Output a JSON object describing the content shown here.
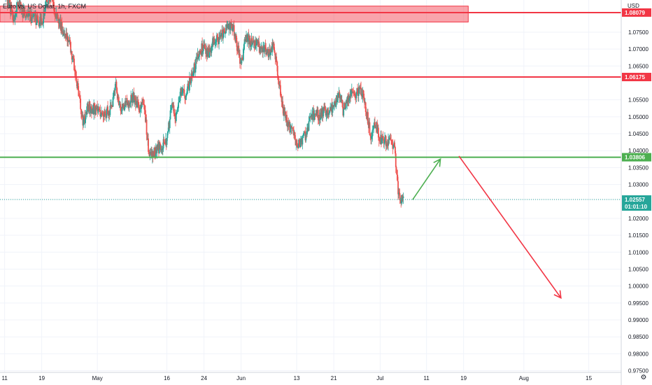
{
  "symbol_title": "Euro vs. US Dollar, 1h, FXCM",
  "currency": "USD",
  "axis_settings_icon": "gear-icon",
  "colors": {
    "up": "#26a69a",
    "down": "#ef5350",
    "resistance": "#f23645",
    "support": "#4caf50",
    "grid": "#f0f3fa",
    "last_price": "#26a69a"
  },
  "chart_data": {
    "type": "candlestick",
    "title": "Euro vs. US Dollar, 1h, FXCM",
    "ylabel": "USD",
    "ylim": [
      0.9745,
      1.0845
    ],
    "xlim": [
      "2022-04-10",
      "2022-08-22"
    ],
    "y_ticks": [
      "1.08079",
      "1.07500",
      "1.07000",
      "1.06500",
      "1.06175",
      "1.05500",
      "1.05000",
      "1.04500",
      "1.04000",
      "1.03806",
      "1.03500",
      "1.03000",
      "1.02557",
      "1.02000",
      "1.01500",
      "1.01000",
      "1.00500",
      "1.00000",
      "0.99500",
      "0.99000",
      "0.98500",
      "0.98000",
      "0.97500"
    ],
    "x_ticks": [
      {
        "label": "11",
        "date": "2022-04-11"
      },
      {
        "label": "19",
        "date": "2022-04-19"
      },
      {
        "label": "May",
        "date": "2022-05-01"
      },
      {
        "label": "16",
        "date": "2022-05-16"
      },
      {
        "label": "24",
        "date": "2022-05-24"
      },
      {
        "label": "Jun",
        "date": "2022-06-01"
      },
      {
        "label": "13",
        "date": "2022-06-13"
      },
      {
        "label": "21",
        "date": "2022-06-21"
      },
      {
        "label": "Jul",
        "date": "2022-07-01"
      },
      {
        "label": "11",
        "date": "2022-07-11"
      },
      {
        "label": "19",
        "date": "2022-07-19"
      },
      {
        "label": "Aug",
        "date": "2022-08-01"
      },
      {
        "label": "15",
        "date": "2022-08-15"
      }
    ],
    "grid": true,
    "price_path": [
      [
        "2022-04-11",
        1.087
      ],
      [
        "2022-04-13",
        1.079
      ],
      [
        "2022-04-14",
        1.084
      ],
      [
        "2022-04-15",
        1.0805
      ],
      [
        "2022-04-18",
        1.0785
      ],
      [
        "2022-04-19",
        1.0775
      ],
      [
        "2022-04-20",
        1.0835
      ],
      [
        "2022-04-21",
        1.086
      ],
      [
        "2022-04-22",
        1.08
      ],
      [
        "2022-04-25",
        1.072
      ],
      [
        "2022-04-26",
        1.065
      ],
      [
        "2022-04-27",
        1.056
      ],
      [
        "2022-04-28",
        1.048
      ],
      [
        "2022-04-29",
        1.053
      ],
      [
        "2022-05-02",
        1.051
      ],
      [
        "2022-05-04",
        1.052
      ],
      [
        "2022-05-05",
        1.0595
      ],
      [
        "2022-05-06",
        1.052
      ],
      [
        "2022-05-09",
        1.056
      ],
      [
        "2022-05-10",
        1.052
      ],
      [
        "2022-05-11",
        1.055
      ],
      [
        "2022-05-12",
        1.04
      ],
      [
        "2022-05-13",
        1.039
      ],
      [
        "2022-05-16",
        1.043
      ],
      [
        "2022-05-17",
        1.053
      ],
      [
        "2022-05-18",
        1.05
      ],
      [
        "2022-05-19",
        1.058
      ],
      [
        "2022-05-20",
        1.056
      ],
      [
        "2022-05-23",
        1.069
      ],
      [
        "2022-05-24",
        1.071
      ],
      [
        "2022-05-25",
        1.068
      ],
      [
        "2022-05-26",
        1.072
      ],
      [
        "2022-05-27",
        1.073
      ],
      [
        "2022-05-30",
        1.0775
      ],
      [
        "2022-05-31",
        1.072
      ],
      [
        "2022-06-01",
        1.065
      ],
      [
        "2022-06-02",
        1.074
      ],
      [
        "2022-06-03",
        1.072
      ],
      [
        "2022-06-06",
        1.07
      ],
      [
        "2022-06-07",
        1.069
      ],
      [
        "2022-06-08",
        1.072
      ],
      [
        "2022-06-09",
        1.062
      ],
      [
        "2022-06-10",
        1.052
      ],
      [
        "2022-06-13",
        1.042
      ],
      [
        "2022-06-14",
        1.043
      ],
      [
        "2022-06-15",
        1.045
      ],
      [
        "2022-06-16",
        1.05
      ],
      [
        "2022-06-17",
        1.05
      ],
      [
        "2022-06-20",
        1.052
      ],
      [
        "2022-06-21",
        1.053
      ],
      [
        "2022-06-22",
        1.057
      ],
      [
        "2022-06-23",
        1.052
      ],
      [
        "2022-06-24",
        1.056
      ],
      [
        "2022-06-27",
        1.058
      ],
      [
        "2022-06-28",
        1.052
      ],
      [
        "2022-06-29",
        1.044
      ],
      [
        "2022-06-30",
        1.048
      ],
      [
        "2022-07-01",
        1.043
      ],
      [
        "2022-07-04",
        1.042
      ],
      [
        "2022-07-05",
        1.026
      ],
      [
        "2022-07-06",
        1.0255
      ]
    ],
    "levels": [
      {
        "name": "resistance-zone",
        "from": 1.078,
        "to": 1.0827,
        "start": "2022-04-10",
        "end": "2022-07-20"
      },
      {
        "name": "resistance-line",
        "price": 1.08079
      },
      {
        "name": "mid-resistance-line",
        "price": 1.06175
      },
      {
        "name": "support-line",
        "price": 1.03806
      }
    ],
    "last_price": {
      "price": 1.02557,
      "label": "1.02557",
      "countdown": "01:01:10"
    },
    "projections": [
      {
        "name": "up-arrow",
        "from": [
          "2022-07-08",
          1.0255
        ],
        "to": [
          "2022-07-14",
          1.0375
        ]
      },
      {
        "name": "down-arrow",
        "from": [
          "2022-07-18",
          1.0384
        ],
        "to": [
          "2022-08-09",
          0.9965
        ]
      }
    ]
  }
}
